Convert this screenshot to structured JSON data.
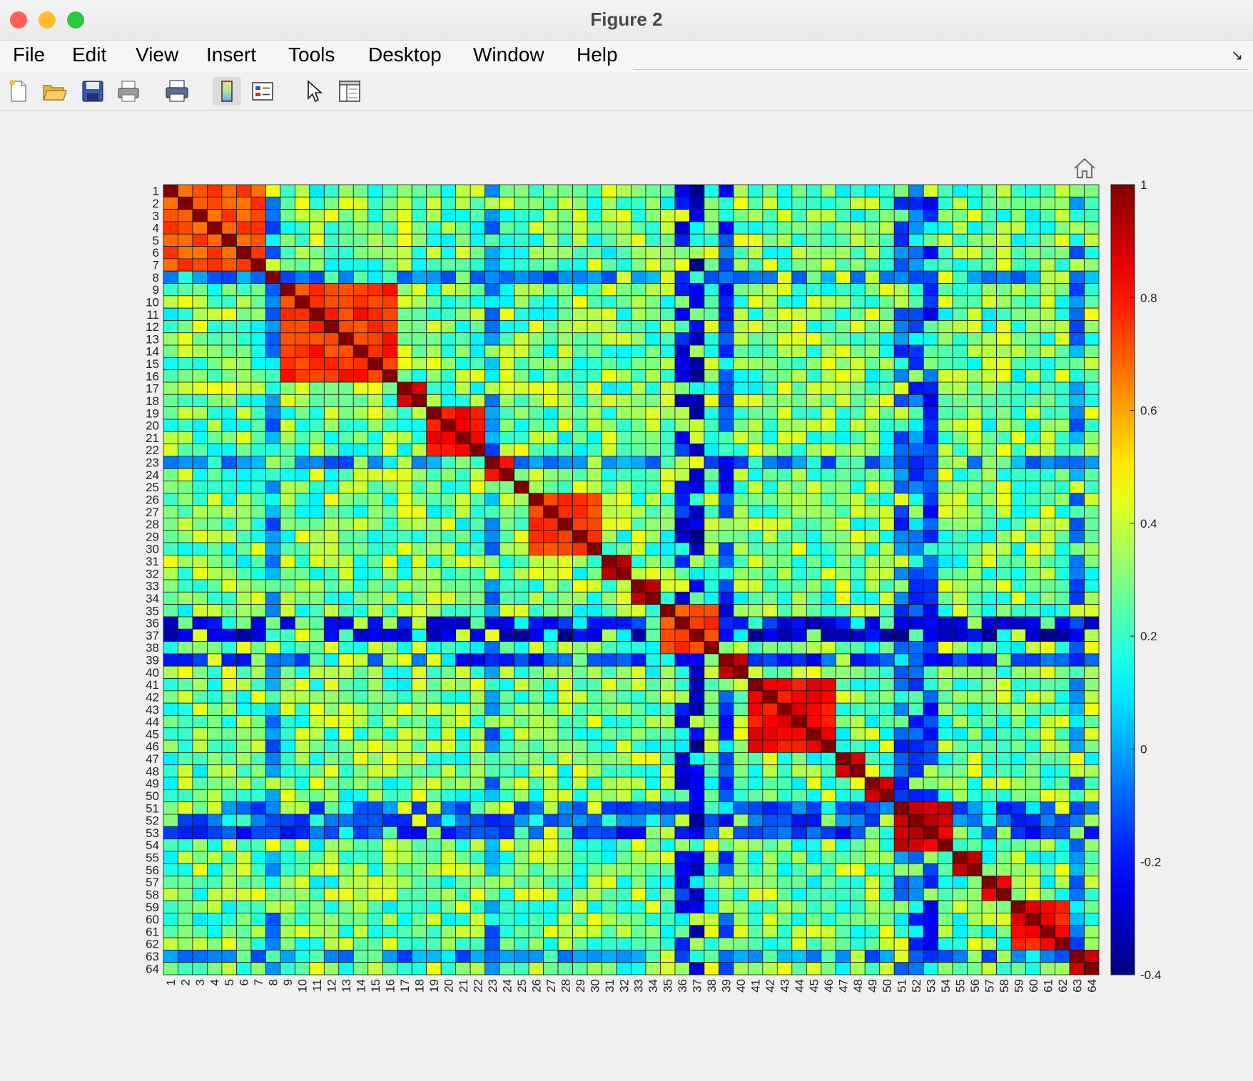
{
  "window": {
    "title": "Figure 2",
    "traffic_lights": {
      "close": "#ff5f57",
      "minimize": "#febc2e",
      "zoom": "#28c840"
    }
  },
  "menu": {
    "items": [
      "File",
      "Edit",
      "View",
      "Insert",
      "Tools",
      "Desktop",
      "Window",
      "Help"
    ]
  },
  "toolbar": {
    "icons": [
      "new-figure-icon",
      "open-file-icon",
      "save-icon",
      "print-icon",
      "print-preview-icon",
      "insert-colorbar-icon",
      "insert-legend-icon",
      "pointer-icon",
      "property-inspector-icon"
    ]
  },
  "axes_toolbar": {
    "icons": [
      "home-icon"
    ]
  },
  "chart_data": {
    "type": "heatmap",
    "colormap": "jet",
    "n": 64,
    "x_ticklabels": [
      "1",
      "2",
      "3",
      "4",
      "5",
      "6",
      "7",
      "8",
      "9",
      "10",
      "11",
      "12",
      "13",
      "14",
      "15",
      "16",
      "17",
      "18",
      "19",
      "20",
      "21",
      "22",
      "23",
      "24",
      "25",
      "26",
      "27",
      "28",
      "29",
      "30",
      "31",
      "32",
      "33",
      "34",
      "35",
      "36",
      "37",
      "38",
      "39",
      "40",
      "41",
      "42",
      "43",
      "44",
      "45",
      "46",
      "47",
      "48",
      "49",
      "50",
      "51",
      "52",
      "53",
      "54",
      "55",
      "56",
      "57",
      "58",
      "59",
      "60",
      "61",
      "62",
      "63",
      "64"
    ],
    "y_ticklabels": [
      "1",
      "2",
      "3",
      "4",
      "5",
      "6",
      "7",
      "8",
      "9",
      "10",
      "11",
      "12",
      "13",
      "14",
      "15",
      "16",
      "17",
      "18",
      "19",
      "20",
      "21",
      "22",
      "23",
      "24",
      "25",
      "26",
      "27",
      "28",
      "29",
      "30",
      "31",
      "32",
      "33",
      "34",
      "35",
      "36",
      "37",
      "38",
      "39",
      "40",
      "41",
      "42",
      "43",
      "44",
      "45",
      "46",
      "47",
      "48",
      "49",
      "50",
      "51",
      "52",
      "53",
      "54",
      "55",
      "56",
      "57",
      "58",
      "59",
      "60",
      "61",
      "62",
      "63",
      "64"
    ],
    "colorbar": {
      "clim": [
        -0.4,
        1
      ],
      "ticks": [
        1,
        0.8,
        0.6,
        0.4,
        0.2,
        0,
        -0.2,
        -0.4
      ],
      "ticklabels": [
        "1",
        "0.8",
        "0.6",
        "0.4",
        "0.2",
        "0",
        "-0.2",
        "-0.4"
      ]
    },
    "diagonal": 1,
    "baseline": 0.28,
    "blocks": [
      {
        "rows": [
          1,
          7
        ],
        "value": 0.72
      },
      {
        "rows": [
          9,
          16
        ],
        "value": 0.76
      },
      {
        "rows": [
          17,
          18
        ],
        "value": 0.88
      },
      {
        "rows": [
          19,
          22
        ],
        "value": 0.82
      },
      {
        "rows": [
          23,
          24
        ],
        "value": 0.78
      },
      {
        "rows": [
          26,
          30
        ],
        "value": 0.76
      },
      {
        "rows": [
          31,
          32
        ],
        "value": 0.9
      },
      {
        "rows": [
          33,
          34
        ],
        "value": 0.88
      },
      {
        "rows": [
          35,
          38
        ],
        "value": 0.72
      },
      {
        "rows": [
          39,
          40
        ],
        "value": 0.85
      },
      {
        "rows": [
          41,
          46
        ],
        "value": 0.82
      },
      {
        "rows": [
          47,
          48
        ],
        "value": 0.9
      },
      {
        "rows": [
          49,
          50
        ],
        "value": 0.9
      },
      {
        "rows": [
          51,
          54
        ],
        "value": 0.88
      },
      {
        "rows": [
          55,
          56
        ],
        "value": 0.85
      },
      {
        "rows": [
          57,
          58
        ],
        "value": 0.85
      },
      {
        "rows": [
          59,
          62
        ],
        "value": 0.82
      },
      {
        "rows": [
          63,
          64
        ],
        "value": 0.85
      }
    ],
    "negative_bands": [
      {
        "index": 36,
        "value": -0.22
      },
      {
        "index": 37,
        "value": -0.3
      },
      {
        "index": 39,
        "value": -0.15
      },
      {
        "index": 51,
        "value": -0.1
      },
      {
        "index": 52,
        "value": -0.1
      },
      {
        "index": 53,
        "value": -0.15
      },
      {
        "index": 23,
        "value": -0.05
      },
      {
        "index": 8,
        "value": -0.05
      },
      {
        "index": 63,
        "value": -0.05
      }
    ]
  }
}
